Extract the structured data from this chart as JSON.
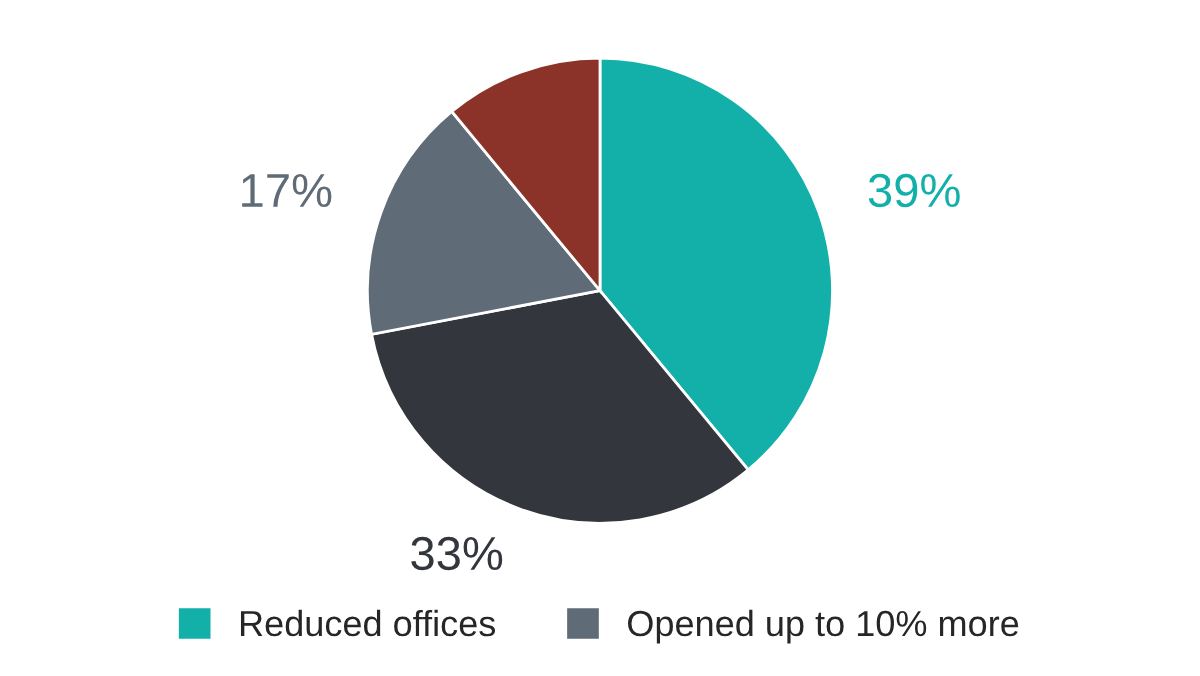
{
  "chart_data": {
    "type": "pie",
    "categories": [
      "Reduced offices",
      null,
      "Opened up to 10% more",
      null
    ],
    "values": [
      39,
      33,
      17,
      11
    ],
    "value_labels": [
      "39%",
      "33%",
      "17%",
      null
    ],
    "colors": [
      "#13b0aa",
      "#33363c",
      "#5f6b76",
      "#8b3328"
    ],
    "legend": "bottom"
  }
}
